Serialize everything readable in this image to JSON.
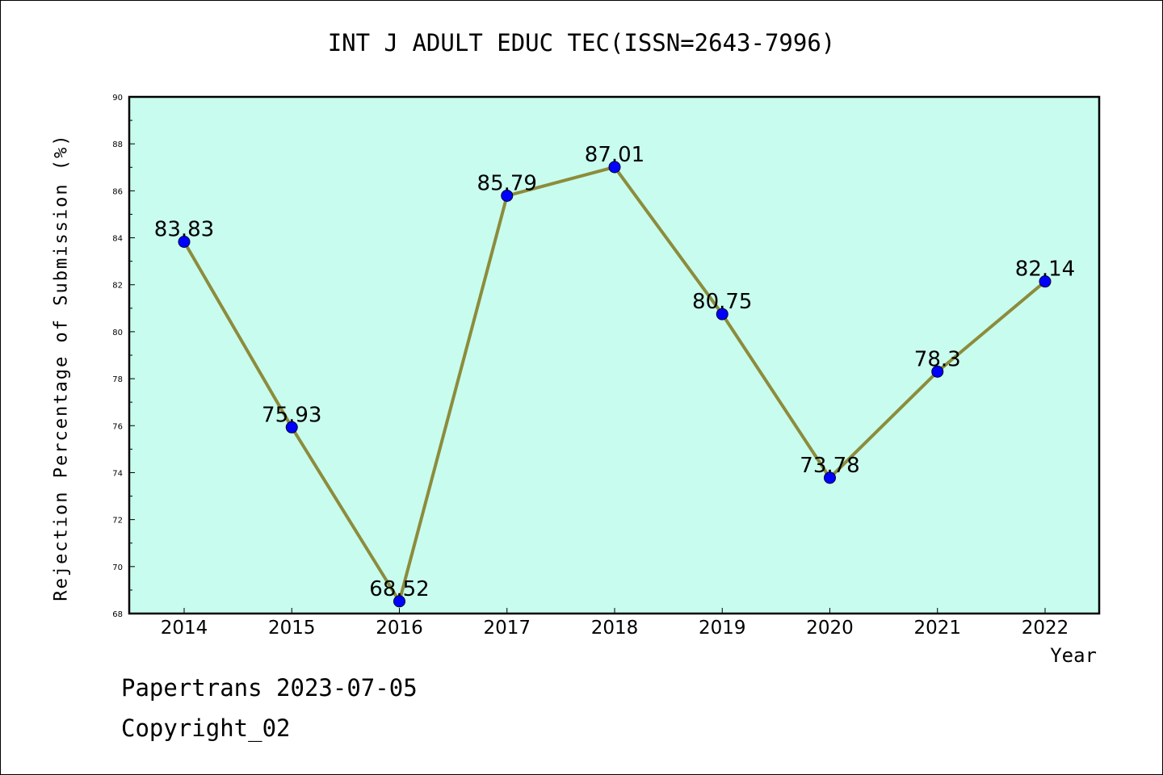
{
  "chart_data": {
    "type": "line",
    "title": "INT J ADULT EDUC TEC(ISSN=2643-7996)",
    "xlabel": "Year",
    "ylabel": "Rejection Percentage of Submission (%)",
    "categories": [
      "2014",
      "2015",
      "2016",
      "2017",
      "2018",
      "2019",
      "2020",
      "2021",
      "2022"
    ],
    "values": [
      83.83,
      75.93,
      68.52,
      85.79,
      87.01,
      80.75,
      73.78,
      78.3,
      82.14
    ],
    "data_labels": [
      "83.83",
      "75.93",
      "68.52",
      "85.79",
      "87.01",
      "80.75",
      "73.78",
      "78.3",
      "82.14"
    ],
    "ylim": [
      68,
      90
    ],
    "yticks": [
      68,
      70,
      72,
      74,
      76,
      78,
      80,
      82,
      84,
      86,
      88,
      90
    ],
    "grid": false,
    "colors": {
      "plot_background": "#c8fcee",
      "line": "#8c8c3c",
      "marker": "#0000ff"
    }
  },
  "footer": {
    "line1": "Papertrans 2023-07-05",
    "line2": "Copyright_02"
  }
}
